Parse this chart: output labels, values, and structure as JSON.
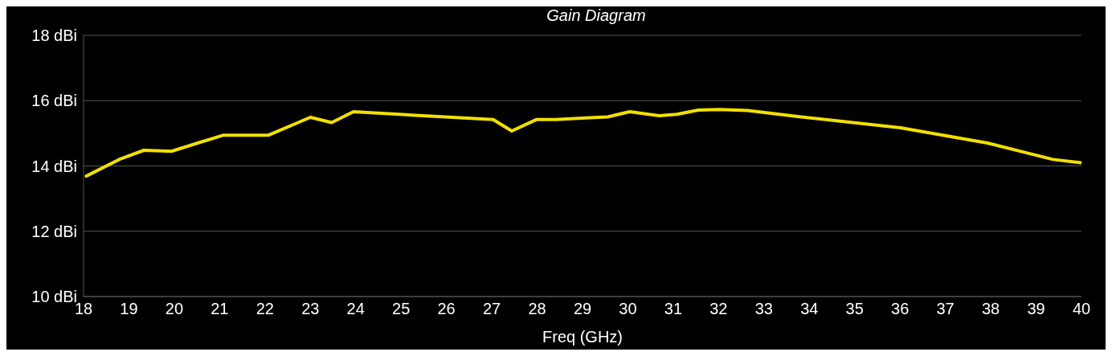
{
  "chart_data": {
    "type": "line",
    "title": "Gain Diagram",
    "xlabel": "Freq (GHz)",
    "x": [
      18.06,
      18.82,
      19.33,
      19.94,
      21.07,
      22.07,
      23.0,
      23.47,
      23.95,
      27.03,
      27.44,
      27.98,
      28.41,
      29.07,
      29.55,
      30.04,
      30.69,
      31.08,
      31.55,
      32.01,
      32.64,
      33.82,
      36.01,
      37.93,
      39.37,
      39.99
    ],
    "series": [
      {
        "color": "#f2e000",
        "values": [
          13.69,
          14.22,
          14.48,
          14.45,
          14.94,
          14.94,
          15.49,
          15.33,
          15.66,
          15.42,
          15.07,
          15.42,
          15.42,
          15.47,
          15.5,
          15.66,
          15.54,
          15.58,
          15.71,
          15.73,
          15.7,
          15.5,
          15.17,
          14.7,
          14.2,
          14.1
        ]
      }
    ],
    "xlim": [
      18,
      40
    ],
    "xticks": [
      18,
      19,
      20,
      21,
      22,
      23,
      24,
      25,
      26,
      27,
      28,
      29,
      30,
      31,
      32,
      33,
      34,
      35,
      36,
      37,
      38,
      39,
      40
    ],
    "ylim": [
      10,
      18
    ],
    "yticks": [
      {
        "value": 10,
        "label": "10 dBi"
      },
      {
        "value": 12,
        "label": "12 dBi"
      },
      {
        "value": 14,
        "label": "14 dBi"
      },
      {
        "value": 16,
        "label": "16 dBi"
      },
      {
        "value": 18,
        "label": "18 dBi"
      }
    ],
    "grid": "y",
    "marker": "none",
    "line_style": "solid",
    "legend": false
  }
}
